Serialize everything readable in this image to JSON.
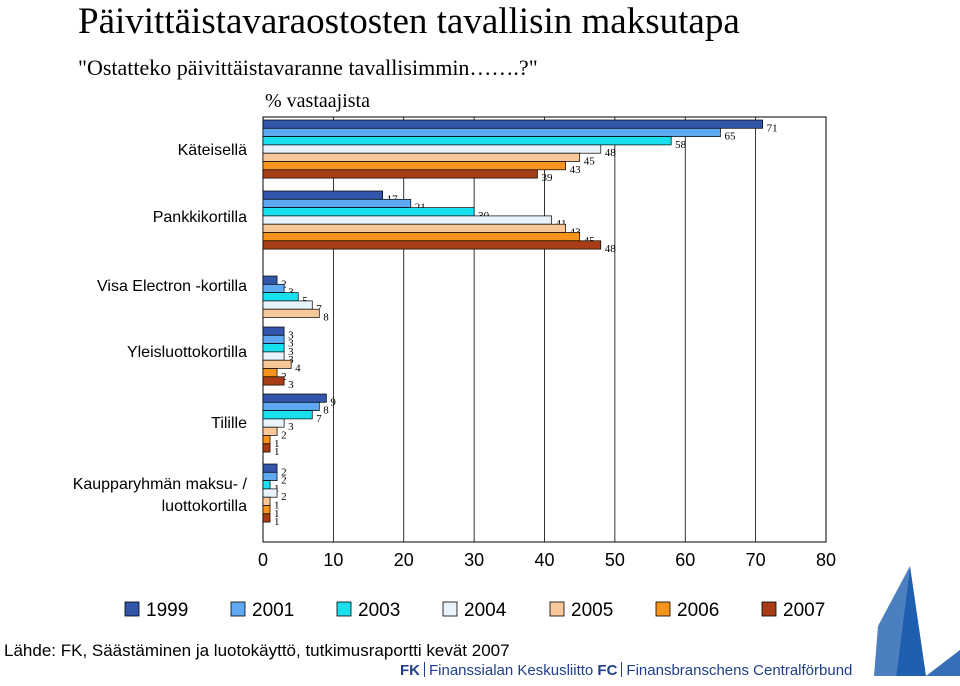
{
  "title": "Päivittäistavaraostosten tavallisin maksutapa",
  "subtitle": "\"Ostatteko päivittäistavaranne tavallisimmin…….?\"",
  "unit_label": "% vastaajista",
  "source": "Lähde: FK, Säästäminen ja luotokäyttö, tutkimusraportti kevät 2007",
  "org": {
    "fk_abbr": "FK",
    "fk_name": "Finanssialan Keskusliitto",
    "fc_abbr": "FC",
    "fc_name": "Finansbranschens Centralförbund"
  },
  "colors": {
    "1999": "#3355aa",
    "2001": "#5fa8f2",
    "2003": "#18e0ee",
    "2004": "#e8f3fc",
    "2005": "#f8c79a",
    "2006": "#f6941e",
    "2007": "#a83c14",
    "logo": "#1f5fb0"
  },
  "chart_data": {
    "type": "bar",
    "orientation": "horizontal",
    "categories": [
      "Käteisellä",
      "Pankkikortilla",
      "Visa Electron -kortilla",
      "Yleisluottokortilla",
      "Tilille",
      "Kaupparyhmän maksu- / luottokortilla"
    ],
    "series": [
      {
        "name": "1999",
        "values": [
          71,
          17,
          2,
          3,
          9,
          2
        ]
      },
      {
        "name": "2001",
        "values": [
          65,
          21,
          3,
          3,
          8,
          2
        ]
      },
      {
        "name": "2003",
        "values": [
          58,
          30,
          5,
          3,
          7,
          1
        ]
      },
      {
        "name": "2004",
        "values": [
          48,
          41,
          7,
          3,
          3,
          2
        ]
      },
      {
        "name": "2005",
        "values": [
          45,
          43,
          8,
          4,
          2,
          1
        ]
      },
      {
        "name": "2006",
        "values": [
          43,
          45,
          null,
          2,
          1,
          1
        ]
      },
      {
        "name": "2007",
        "values": [
          39,
          48,
          null,
          3,
          1,
          1
        ]
      }
    ],
    "xlim": [
      0,
      80
    ],
    "xticks": [
      "0",
      "10",
      "20",
      "30",
      "40",
      "50",
      "60",
      "70",
      "80"
    ],
    "grid": "vertical",
    "legend_position": "bottom"
  }
}
